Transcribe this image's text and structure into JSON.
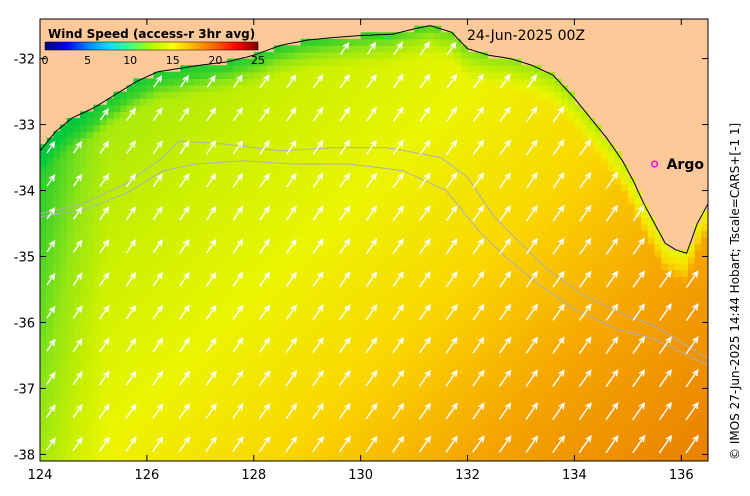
{
  "title": "24-Jun-2025 00Z",
  "colorbar": {
    "title": "Wind Speed (access-r 3hr avg)",
    "ticks": [
      "0",
      "5",
      "10",
      "15",
      "20",
      "25"
    ],
    "min": 0,
    "max": 25,
    "colors": [
      "#00007f",
      "#0000ff",
      "#0080ff",
      "#00e0ff",
      "#40ff80",
      "#b0ff00",
      "#ffff00",
      "#ffb000",
      "#ff6000",
      "#ff0000",
      "#7f0000"
    ]
  },
  "axes": {
    "x_ticks": [
      "124",
      "126",
      "128",
      "130",
      "132",
      "134",
      "136"
    ],
    "y_ticks": [
      "-32",
      "-33",
      "-34",
      "-35",
      "-36",
      "-37",
      "-38"
    ],
    "lon_range": [
      124,
      136.5
    ],
    "lat_range": [
      -38.1,
      -31.4
    ]
  },
  "marker": {
    "label": "Argo",
    "lon": 135.5,
    "lat": -33.6,
    "color": "#ff00ff"
  },
  "credit": "© IMOS 27-Jun-2025 14:44 Hobart; Tscale=CARS+[-1 1]",
  "colors": {
    "land": "#fdc998",
    "arrow": "#ffffff",
    "contour": "#b0b0b0"
  }
}
